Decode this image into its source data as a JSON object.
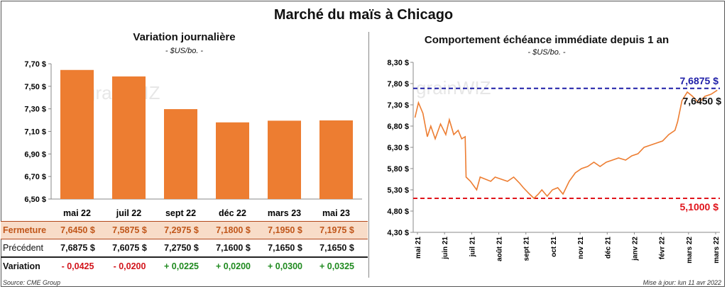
{
  "title": "Marché du maïs à Chicago",
  "source": "Source: CME Group",
  "updated": "Mise à jour: lun 11 avr 2022",
  "watermark": "grainWIZ",
  "colors": {
    "bar": "#ed7d31",
    "line": "#ed7d31",
    "high": "#1f1fa8",
    "low": "#e0141b"
  },
  "left": {
    "title": "Variation journalière",
    "unit": "- $US/bo. -",
    "table": {
      "close_label": "Fermeture",
      "prev_label": "Précédent",
      "var_label": "Variation",
      "close": [
        "7,6450  $",
        "7,5875  $",
        "7,2975  $",
        "7,1800  $",
        "7,1950  $",
        "7,1975  $"
      ],
      "prev": [
        "7,6875  $",
        "7,6075  $",
        "7,2750  $",
        "7,1600  $",
        "7,1650  $",
        "7,1650  $"
      ],
      "variation": [
        "- 0,0425",
        "- 0,0200",
        "+ 0,0225",
        "+ 0,0200",
        "+ 0,0300",
        "+ 0,0325"
      ]
    }
  },
  "right": {
    "title": "Comportement  échéance immédiate depuis 1 an",
    "unit": "- $US/bo. -",
    "high_label": "7,6875 $",
    "low_label": "5,1000 $",
    "last_label": "7,6450 $"
  },
  "chart_data": [
    {
      "type": "bar",
      "categories": [
        "mai 22",
        "juil 22",
        "sept 22",
        "déc 22",
        "mars 23",
        "mai 23"
      ],
      "values": [
        7.645,
        7.5875,
        7.2975,
        7.18,
        7.195,
        7.1975
      ],
      "ylim": [
        6.5,
        7.7
      ],
      "yticks": [
        6.5,
        6.7,
        6.9,
        7.1,
        7.3,
        7.5,
        7.7
      ],
      "ytick_labels": [
        "6,50 $",
        "6,70 $",
        "6,90 $",
        "7,10 $",
        "7,30 $",
        "7,50 $",
        "7,70 $"
      ],
      "title": "Variation journalière",
      "ylabel": "- $US/bo. -"
    },
    {
      "type": "line",
      "title": "Comportement  échéance immédiate depuis 1 an",
      "ylabel": "- $US/bo. -",
      "ylim": [
        4.3,
        8.3
      ],
      "yticks": [
        4.3,
        4.8,
        5.3,
        5.8,
        6.3,
        6.8,
        7.3,
        7.8,
        8.3
      ],
      "ytick_labels": [
        "4,30 $",
        "4,80 $",
        "5,30 $",
        "5,80 $",
        "6,30 $",
        "6,80 $",
        "7,30 $",
        "7,80 $",
        "8,30 $"
      ],
      "xtick_labels": [
        "mai 21",
        "juin 21",
        "juil 21",
        "août 21",
        "sept 21",
        "oct 21",
        "nov 21",
        "déc 21",
        "janv 22",
        "févr 22",
        "mars 22",
        "mars 22"
      ],
      "x": [
        "2021-05-03",
        "2021-05-07",
        "2021-05-12",
        "2021-05-17",
        "2021-05-21",
        "2021-05-26",
        "2021-06-01",
        "2021-06-07",
        "2021-06-11",
        "2021-06-16",
        "2021-06-21",
        "2021-06-25",
        "2021-06-29",
        "2021-06-30",
        "2021-07-05",
        "2021-07-12",
        "2021-07-16",
        "2021-07-22",
        "2021-07-28",
        "2021-08-02",
        "2021-08-09",
        "2021-08-16",
        "2021-08-23",
        "2021-08-30",
        "2021-09-03",
        "2021-09-10",
        "2021-09-15",
        "2021-09-20",
        "2021-09-24",
        "2021-09-30",
        "2021-10-06",
        "2021-10-12",
        "2021-10-18",
        "2021-10-25",
        "2021-11-01",
        "2021-11-08",
        "2021-11-15",
        "2021-11-22",
        "2021-11-29",
        "2021-12-06",
        "2021-12-13",
        "2021-12-20",
        "2021-12-28",
        "2022-01-04",
        "2022-01-11",
        "2022-01-18",
        "2022-01-25",
        "2022-02-01",
        "2022-02-08",
        "2022-02-15",
        "2022-02-22",
        "2022-02-25",
        "2022-03-02",
        "2022-03-08",
        "2022-03-14",
        "2022-03-21",
        "2022-03-28",
        "2022-04-04",
        "2022-04-11"
      ],
      "series": [
        {
          "values": [
            7.0,
            7.35,
            7.1,
            6.55,
            6.8,
            6.5,
            6.85,
            6.6,
            6.95,
            6.6,
            6.7,
            6.5,
            6.55,
            5.6,
            5.5,
            5.3,
            5.6,
            5.55,
            5.5,
            5.6,
            5.55,
            5.5,
            5.6,
            5.45,
            5.35,
            5.2,
            5.1,
            5.2,
            5.3,
            5.15,
            5.3,
            5.35,
            5.2,
            5.5,
            5.7,
            5.8,
            5.85,
            5.95,
            5.85,
            5.95,
            6.0,
            6.05,
            6.0,
            6.1,
            6.15,
            6.3,
            6.35,
            6.4,
            6.45,
            6.6,
            6.7,
            6.9,
            7.4,
            7.6,
            7.5,
            7.35,
            7.5,
            7.55,
            7.645
          ]
        }
      ],
      "annotations": [
        {
          "label": "7,6875 $",
          "y": 7.6875
        },
        {
          "label": "5,1000 $",
          "y": 5.1
        },
        {
          "label": "7,6450 $",
          "y": 7.645
        }
      ]
    }
  ]
}
